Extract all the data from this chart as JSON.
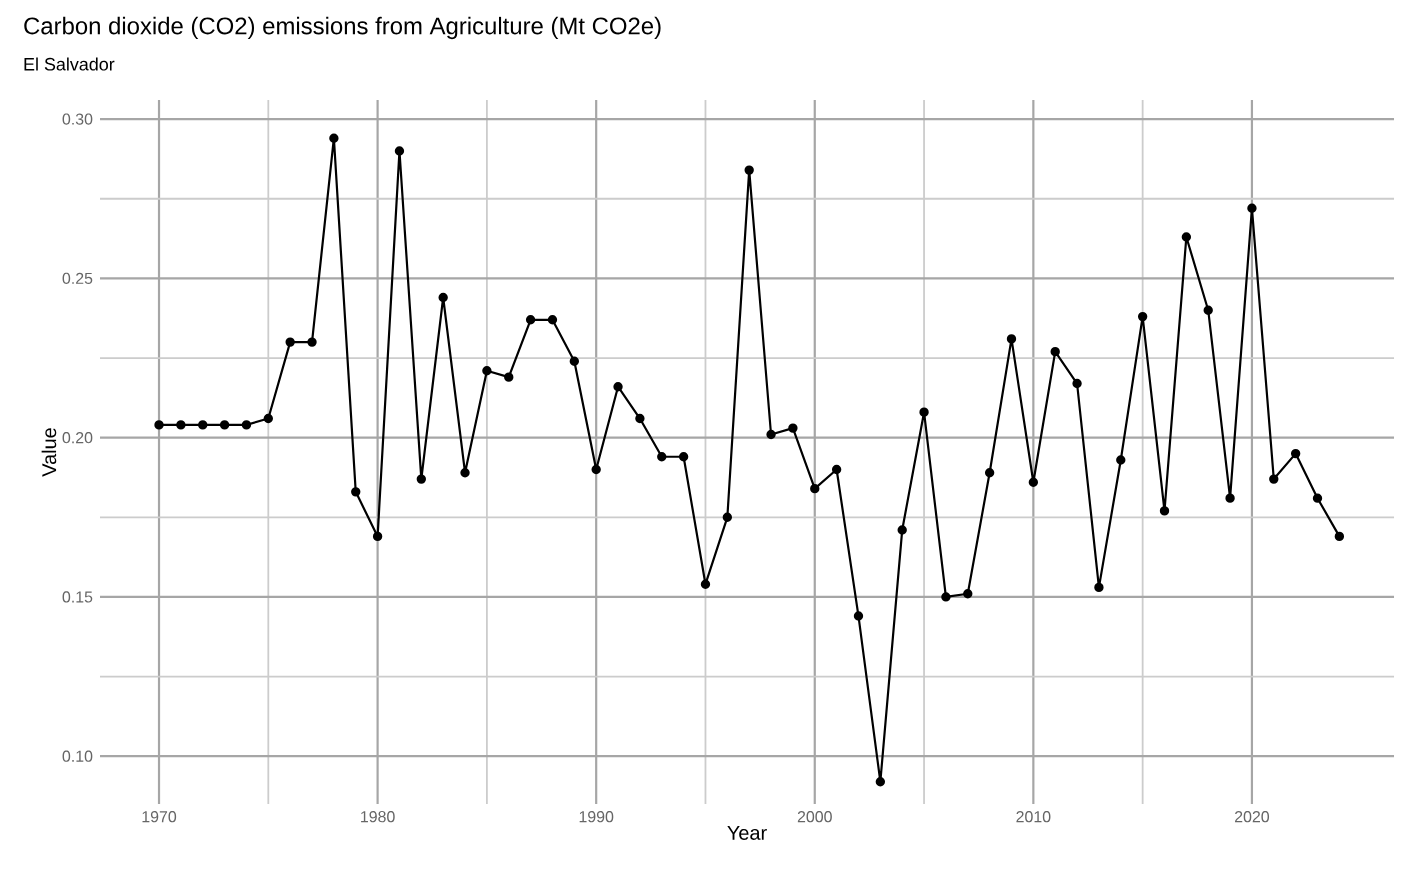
{
  "chart_data": {
    "type": "line",
    "title": "Carbon dioxide (CO2) emissions from Agriculture (Mt CO2e)",
    "subtitle": "El Salvador",
    "xlabel": "Year",
    "ylabel": "Value",
    "x": [
      1970,
      1971,
      1972,
      1973,
      1974,
      1975,
      1976,
      1977,
      1978,
      1979,
      1980,
      1981,
      1982,
      1983,
      1984,
      1985,
      1986,
      1987,
      1988,
      1989,
      1990,
      1991,
      1992,
      1993,
      1994,
      1995,
      1996,
      1997,
      1998,
      1999,
      2000,
      2001,
      2002,
      2003,
      2004,
      2005,
      2006,
      2007,
      2008,
      2009,
      2010,
      2011,
      2012,
      2013,
      2014,
      2015,
      2016,
      2017,
      2018,
      2019,
      2020,
      2021,
      2022,
      2023,
      2024
    ],
    "series": [
      {
        "color": "#000000",
        "values": [
          0.204,
          0.204,
          0.204,
          0.204,
          0.204,
          0.206,
          0.23,
          0.23,
          0.294,
          0.183,
          0.169,
          0.29,
          0.187,
          0.244,
          0.189,
          0.221,
          0.219,
          0.237,
          0.237,
          0.224,
          0.19,
          0.216,
          0.206,
          0.194,
          0.194,
          0.154,
          0.175,
          0.284,
          0.201,
          0.203,
          0.184,
          0.19,
          0.144,
          0.092,
          0.171,
          0.208,
          0.15,
          0.151,
          0.189,
          0.231,
          0.186,
          0.227,
          0.217,
          0.153,
          0.193,
          0.238,
          0.177,
          0.263,
          0.24,
          0.181,
          0.272,
          0.187,
          0.195,
          0.181,
          0.169
        ]
      }
    ],
    "xlim": [
      1967.3,
      2026.5
    ],
    "ylim": [
      0.085,
      0.306
    ],
    "xticks": [
      1970,
      1980,
      1990,
      2000,
      2010,
      2020
    ],
    "yticks": [
      {
        "value": 0.1,
        "label": "0.10"
      },
      {
        "value": 0.15,
        "label": "0.15"
      },
      {
        "value": 0.2,
        "label": "0.20"
      },
      {
        "value": 0.25,
        "label": "0.25"
      },
      {
        "value": 0.3,
        "label": "0.30"
      }
    ],
    "grid": true,
    "marker": "circle",
    "line_style": "solid"
  }
}
